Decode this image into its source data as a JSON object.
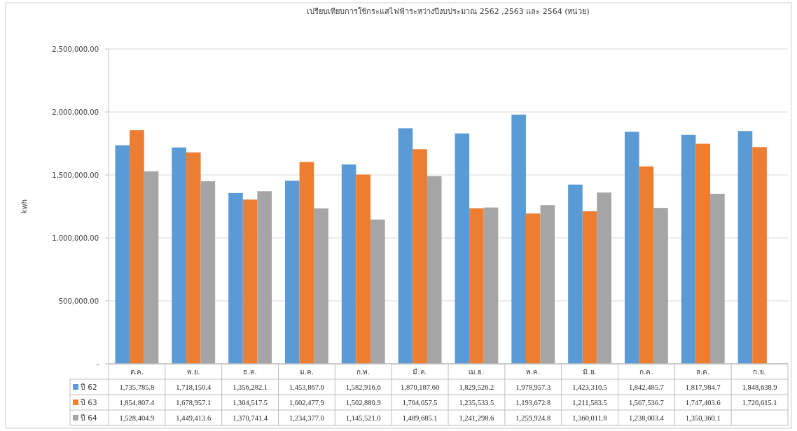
{
  "chart_data": {
    "type": "bar",
    "title": "เปรียบเทียบการใช้กระแสไฟฟ้าระหว่างปีงบประมาณ 2562 ,2563 และ 2564 (หน่วย)",
    "ylabel": "kwh",
    "categories": [
      "ต.ค.",
      "พ.ย.",
      "ธ.ค.",
      "ม.ค.",
      "ก.พ.",
      "มี.ค.",
      "เม.ย.",
      "พ.ค.",
      "มิ.ย.",
      "ก.ค.",
      "ส.ค.",
      "ก.ย."
    ],
    "series": [
      {
        "name": "ปี 62",
        "color": "#5b9bd5",
        "values": [
          1735785.8,
          1718150.4,
          1356282.1,
          1453867.0,
          1582916.6,
          1870187.6,
          1829526.2,
          1978957.3,
          1423310.5,
          1842485.7,
          1817984.7,
          1848638.9
        ],
        "value_labels": [
          "1,735,785.8",
          "1,718,150.4",
          "1,356,282.1",
          "1,453,867.0",
          "1,582,916.6",
          "1,870,187.60",
          "1,829,526.2",
          "1,978,957.3",
          "1,423,310.5",
          "1,842,485.7",
          "1,817,984.7",
          "1,848,638.9"
        ]
      },
      {
        "name": "ปี 63",
        "color": "#ed7d31",
        "values": [
          1854807.4,
          1678957.1,
          1304517.5,
          1602477.9,
          1502880.9,
          1704057.5,
          1235533.5,
          1193672.8,
          1211583.5,
          1567536.7,
          1747403.6,
          1720615.1
        ],
        "value_labels": [
          "1,854,807.4",
          "1,678,957.1",
          "1,304,517.5",
          "1,602,477.9",
          "1,502,880.9",
          "1,704,057.5",
          "1,235,533.5",
          "1,193,672.8",
          "1,211,583.5",
          "1,567,536.7",
          "1,747,403.6",
          "1,720,615.1"
        ]
      },
      {
        "name": "ปี 64",
        "color": "#a5a5a5",
        "values": [
          1528404.9,
          1449413.6,
          1370741.4,
          1234377.0,
          1145521.0,
          1489685.1,
          1241298.6,
          1259924.8,
          1360011.8,
          1238003.4,
          1350360.1,
          null
        ],
        "value_labels": [
          "1,528,404.9",
          "1,449,413.6",
          "1,370,741.4",
          "1,234,377.0",
          "1,145,521.0",
          "1,489,685.1",
          "1,241,298.6",
          "1,259,924.8",
          "1,360,011.8",
          "1,238,003.4",
          "1,350,360.1",
          null
        ]
      }
    ],
    "ylim": [
      0,
      2500000
    ],
    "yticks": [
      {
        "value": 0,
        "label": "-"
      },
      {
        "value": 500000,
        "label": "500,000.00"
      },
      {
        "value": 1000000,
        "label": "1,000,000.00"
      },
      {
        "value": 1500000,
        "label": "1,500,000.00"
      },
      {
        "value": 2000000,
        "label": "2,000,000.00"
      },
      {
        "value": 2500000,
        "label": "2,500,000.00"
      }
    ],
    "grid": "y",
    "legend": "bottom"
  }
}
